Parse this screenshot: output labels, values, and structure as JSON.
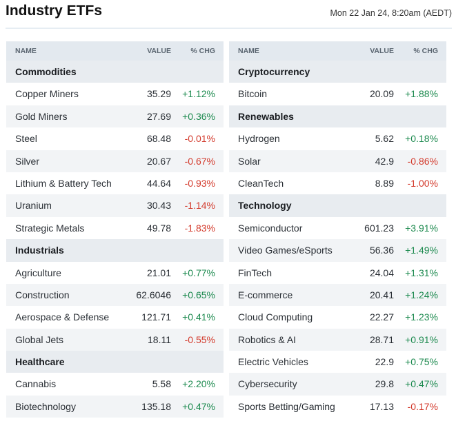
{
  "header": {
    "title": "Industry ETFs",
    "timestamp": "Mon 22 Jan 24, 8:20am (AEDT)"
  },
  "columns": {
    "name": "NAME",
    "value": "VALUE",
    "chg": "% CHG"
  },
  "left": [
    {
      "type": "section",
      "label": "Commodities"
    },
    {
      "type": "row",
      "name": "Copper Miners",
      "value": "35.29",
      "chg": "+1.12%",
      "dir": "up"
    },
    {
      "type": "row",
      "name": "Gold Miners",
      "value": "27.69",
      "chg": "+0.36%",
      "dir": "up"
    },
    {
      "type": "row",
      "name": "Steel",
      "value": "68.48",
      "chg": "-0.01%",
      "dir": "down"
    },
    {
      "type": "row",
      "name": "Silver",
      "value": "20.67",
      "chg": "-0.67%",
      "dir": "down"
    },
    {
      "type": "row",
      "name": "Lithium & Battery Tech",
      "value": "44.64",
      "chg": "-0.93%",
      "dir": "down"
    },
    {
      "type": "row",
      "name": "Uranium",
      "value": "30.43",
      "chg": "-1.14%",
      "dir": "down"
    },
    {
      "type": "row",
      "name": "Strategic Metals",
      "value": "49.78",
      "chg": "-1.83%",
      "dir": "down"
    },
    {
      "type": "section",
      "label": "Industrials"
    },
    {
      "type": "row",
      "name": "Agriculture",
      "value": "21.01",
      "chg": "+0.77%",
      "dir": "up"
    },
    {
      "type": "row",
      "name": "Construction",
      "value": "62.6046",
      "chg": "+0.65%",
      "dir": "up"
    },
    {
      "type": "row",
      "name": "Aerospace & Defense",
      "value": "121.71",
      "chg": "+0.41%",
      "dir": "up"
    },
    {
      "type": "row",
      "name": "Global Jets",
      "value": "18.11",
      "chg": "-0.55%",
      "dir": "down"
    },
    {
      "type": "section",
      "label": "Healthcare"
    },
    {
      "type": "row",
      "name": "Cannabis",
      "value": "5.58",
      "chg": "+2.20%",
      "dir": "up"
    },
    {
      "type": "row",
      "name": "Biotechnology",
      "value": "135.18",
      "chg": "+0.47%",
      "dir": "up"
    }
  ],
  "right": [
    {
      "type": "section",
      "label": "Cryptocurrency"
    },
    {
      "type": "row",
      "name": "Bitcoin",
      "value": "20.09",
      "chg": "+1.88%",
      "dir": "up"
    },
    {
      "type": "section",
      "label": "Renewables"
    },
    {
      "type": "row",
      "name": "Hydrogen",
      "value": "5.62",
      "chg": "+0.18%",
      "dir": "up"
    },
    {
      "type": "row",
      "name": "Solar",
      "value": "42.9",
      "chg": "-0.86%",
      "dir": "down"
    },
    {
      "type": "row",
      "name": "CleanTech",
      "value": "8.89",
      "chg": "-1.00%",
      "dir": "down"
    },
    {
      "type": "section",
      "label": "Technology"
    },
    {
      "type": "row",
      "name": "Semiconductor",
      "value": "601.23",
      "chg": "+3.91%",
      "dir": "up"
    },
    {
      "type": "row",
      "name": "Video Games/eSports",
      "value": "56.36",
      "chg": "+1.49%",
      "dir": "up"
    },
    {
      "type": "row",
      "name": "FinTech",
      "value": "24.04",
      "chg": "+1.31%",
      "dir": "up"
    },
    {
      "type": "row",
      "name": "E-commerce",
      "value": "20.41",
      "chg": "+1.24%",
      "dir": "up"
    },
    {
      "type": "row",
      "name": "Cloud Computing",
      "value": "22.27",
      "chg": "+1.23%",
      "dir": "up"
    },
    {
      "type": "row",
      "name": "Robotics & AI",
      "value": "28.71",
      "chg": "+0.91%",
      "dir": "up"
    },
    {
      "type": "row",
      "name": "Electric Vehicles",
      "value": "22.9",
      "chg": "+0.75%",
      "dir": "up"
    },
    {
      "type": "row",
      "name": "Cybersecurity",
      "value": "29.8",
      "chg": "+0.47%",
      "dir": "up"
    },
    {
      "type": "row",
      "name": "Sports Betting/Gaming",
      "value": "17.13",
      "chg": "-0.17%",
      "dir": "down"
    }
  ],
  "colors": {
    "up": "#1d8a4f",
    "down": "#d33a2c",
    "header_bg": "#e3e9ef",
    "stripe_bg": "#f2f4f6"
  }
}
